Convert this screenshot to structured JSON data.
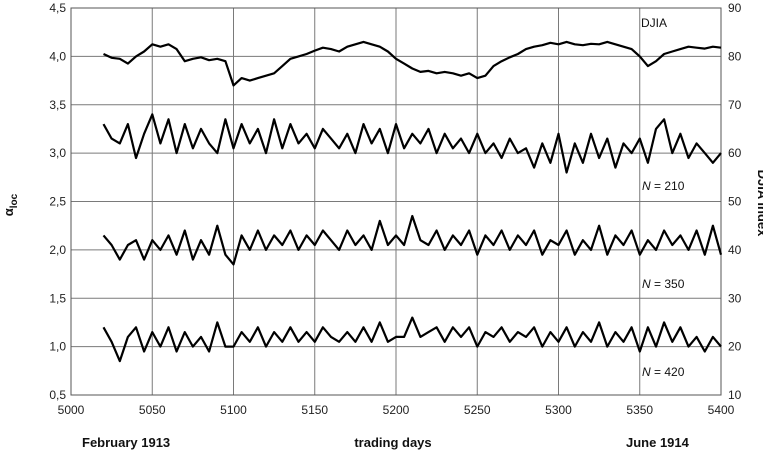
{
  "chart_data": {
    "type": "line",
    "left_axis": {
      "title_main": "α",
      "title_sub": "loc",
      "ylim": [
        0.5,
        4.5
      ],
      "tick_labels": [
        "0,5",
        "1,0",
        "1,5",
        "2,0",
        "2,5",
        "3,0",
        "3,5",
        "4,0",
        "4,5"
      ]
    },
    "right_axis": {
      "title": "DJIA Index",
      "ylim": [
        10,
        90
      ],
      "tick_labels": [
        "10",
        "20",
        "30",
        "40",
        "50",
        "60",
        "70",
        "80",
        "90"
      ]
    },
    "x_axis": {
      "title": "trading days",
      "xlim": [
        5000,
        5400
      ],
      "tick_labels": [
        "5000",
        "5050",
        "5100",
        "5150",
        "5200",
        "5250",
        "5300",
        "5350",
        "5400"
      ],
      "date_left": "February 1913",
      "date_right": "June 1914"
    },
    "grid": true,
    "series": [
      {
        "name": "DJIA",
        "axis": "right",
        "x": [
          5020,
          5025,
          5030,
          5035,
          5040,
          5045,
          5050,
          5055,
          5060,
          5065,
          5070,
          5075,
          5080,
          5085,
          5090,
          5095,
          5100,
          5105,
          5110,
          5115,
          5120,
          5125,
          5130,
          5135,
          5140,
          5145,
          5150,
          5155,
          5160,
          5165,
          5170,
          5175,
          5180,
          5185,
          5190,
          5195,
          5200,
          5205,
          5210,
          5215,
          5220,
          5225,
          5230,
          5235,
          5240,
          5245,
          5250,
          5255,
          5260,
          5265,
          5270,
          5275,
          5280,
          5285,
          5290,
          5295,
          5300,
          5305,
          5310,
          5315,
          5320,
          5325,
          5330,
          5335,
          5340,
          5345,
          5350,
          5355,
          5360,
          5365,
          5370,
          5375,
          5380,
          5385,
          5390,
          5395,
          5400
        ],
        "values": [
          80.5,
          79.7,
          79.5,
          78.5,
          80.0,
          81.0,
          82.5,
          82.0,
          82.5,
          81.5,
          79.0,
          79.5,
          79.8,
          79.2,
          79.5,
          79.0,
          74.0,
          75.5,
          75.0,
          75.5,
          76.0,
          76.5,
          78.0,
          79.5,
          80.0,
          80.5,
          81.2,
          81.8,
          81.5,
          81.0,
          82.0,
          82.5,
          83.0,
          82.5,
          82.0,
          81.0,
          79.5,
          78.5,
          77.5,
          76.8,
          77.0,
          76.5,
          76.8,
          76.5,
          76.0,
          76.5,
          75.5,
          76.0,
          78.0,
          79.0,
          79.8,
          80.5,
          81.5,
          82.0,
          82.3,
          82.8,
          82.5,
          83.0,
          82.5,
          82.3,
          82.6,
          82.5,
          83.0,
          82.5,
          82.0,
          81.5,
          80.0,
          78.0,
          79.0,
          80.5,
          81.0,
          81.5,
          82.0,
          81.8,
          81.6,
          82.0,
          81.8
        ]
      },
      {
        "name": "N = 210",
        "axis": "left",
        "x": [
          5020,
          5025,
          5030,
          5035,
          5040,
          5045,
          5050,
          5055,
          5060,
          5065,
          5070,
          5075,
          5080,
          5085,
          5090,
          5095,
          5100,
          5105,
          5110,
          5115,
          5120,
          5125,
          5130,
          5135,
          5140,
          5145,
          5150,
          5155,
          5160,
          5165,
          5170,
          5175,
          5180,
          5185,
          5190,
          5195,
          5200,
          5205,
          5210,
          5215,
          5220,
          5225,
          5230,
          5235,
          5240,
          5245,
          5250,
          5255,
          5260,
          5265,
          5270,
          5275,
          5280,
          5285,
          5290,
          5295,
          5300,
          5305,
          5310,
          5315,
          5320,
          5325,
          5330,
          5335,
          5340,
          5345,
          5350,
          5355,
          5360,
          5365,
          5370,
          5375,
          5380,
          5385,
          5390,
          5395,
          5400
        ],
        "values": [
          3.3,
          3.15,
          3.1,
          3.3,
          2.95,
          3.2,
          3.4,
          3.1,
          3.35,
          3.0,
          3.3,
          3.05,
          3.25,
          3.1,
          3.0,
          3.35,
          3.05,
          3.3,
          3.1,
          3.25,
          3.0,
          3.35,
          3.05,
          3.3,
          3.1,
          3.2,
          3.05,
          3.25,
          3.15,
          3.05,
          3.2,
          3.0,
          3.3,
          3.1,
          3.25,
          3.0,
          3.3,
          3.05,
          3.2,
          3.1,
          3.25,
          3.0,
          3.2,
          3.05,
          3.15,
          3.0,
          3.2,
          3.0,
          3.1,
          2.95,
          3.15,
          3.0,
          3.05,
          2.85,
          3.1,
          2.9,
          3.2,
          2.8,
          3.1,
          2.9,
          3.2,
          2.95,
          3.15,
          2.85,
          3.1,
          3.0,
          3.15,
          2.9,
          3.25,
          3.35,
          3.0,
          3.2,
          2.95,
          3.1,
          3.0,
          2.9,
          3.0
        ]
      },
      {
        "name": "N = 350",
        "axis": "left",
        "x": [
          5020,
          5025,
          5030,
          5035,
          5040,
          5045,
          5050,
          5055,
          5060,
          5065,
          5070,
          5075,
          5080,
          5085,
          5090,
          5095,
          5100,
          5105,
          5110,
          5115,
          5120,
          5125,
          5130,
          5135,
          5140,
          5145,
          5150,
          5155,
          5160,
          5165,
          5170,
          5175,
          5180,
          5185,
          5190,
          5195,
          5200,
          5205,
          5210,
          5215,
          5220,
          5225,
          5230,
          5235,
          5240,
          5245,
          5250,
          5255,
          5260,
          5265,
          5270,
          5275,
          5280,
          5285,
          5290,
          5295,
          5300,
          5305,
          5310,
          5315,
          5320,
          5325,
          5330,
          5335,
          5340,
          5345,
          5350,
          5355,
          5360,
          5365,
          5370,
          5375,
          5380,
          5385,
          5390,
          5395,
          5400
        ],
        "values": [
          2.15,
          2.05,
          1.9,
          2.05,
          2.1,
          1.9,
          2.1,
          2.0,
          2.15,
          1.95,
          2.2,
          1.9,
          2.1,
          1.95,
          2.25,
          1.95,
          1.85,
          2.15,
          2.0,
          2.2,
          2.0,
          2.15,
          2.05,
          2.2,
          2.0,
          2.15,
          2.05,
          2.2,
          2.1,
          2.0,
          2.2,
          2.05,
          2.15,
          2.0,
          2.3,
          2.05,
          2.15,
          2.05,
          2.35,
          2.1,
          2.05,
          2.2,
          2.0,
          2.15,
          2.05,
          2.2,
          1.95,
          2.15,
          2.05,
          2.2,
          2.0,
          2.15,
          2.05,
          2.2,
          1.95,
          2.1,
          2.05,
          2.2,
          1.95,
          2.1,
          2.0,
          2.25,
          1.95,
          2.15,
          2.05,
          2.2,
          1.95,
          2.1,
          2.0,
          2.2,
          2.05,
          2.15,
          2.0,
          2.2,
          1.95,
          2.25,
          1.95
        ]
      },
      {
        "name": "N = 420",
        "axis": "left",
        "x": [
          5020,
          5025,
          5030,
          5035,
          5040,
          5045,
          5050,
          5055,
          5060,
          5065,
          5070,
          5075,
          5080,
          5085,
          5090,
          5095,
          5100,
          5105,
          5110,
          5115,
          5120,
          5125,
          5130,
          5135,
          5140,
          5145,
          5150,
          5155,
          5160,
          5165,
          5170,
          5175,
          5180,
          5185,
          5190,
          5195,
          5200,
          5205,
          5210,
          5215,
          5220,
          5225,
          5230,
          5235,
          5240,
          5245,
          5250,
          5255,
          5260,
          5265,
          5270,
          5275,
          5280,
          5285,
          5290,
          5295,
          5300,
          5305,
          5310,
          5315,
          5320,
          5325,
          5330,
          5335,
          5340,
          5345,
          5350,
          5355,
          5360,
          5365,
          5370,
          5375,
          5380,
          5385,
          5390,
          5395,
          5400
        ],
        "values": [
          1.2,
          1.05,
          0.85,
          1.1,
          1.2,
          0.95,
          1.15,
          1.0,
          1.2,
          0.95,
          1.15,
          1.0,
          1.1,
          0.95,
          1.25,
          1.0,
          1.0,
          1.15,
          1.05,
          1.2,
          1.0,
          1.15,
          1.05,
          1.2,
          1.05,
          1.15,
          1.05,
          1.2,
          1.1,
          1.05,
          1.15,
          1.05,
          1.2,
          1.05,
          1.25,
          1.05,
          1.1,
          1.1,
          1.3,
          1.1,
          1.15,
          1.2,
          1.05,
          1.2,
          1.1,
          1.2,
          1.0,
          1.15,
          1.1,
          1.2,
          1.05,
          1.15,
          1.1,
          1.2,
          1.0,
          1.15,
          1.05,
          1.2,
          1.0,
          1.15,
          1.05,
          1.25,
          1.0,
          1.15,
          1.05,
          1.2,
          0.95,
          1.2,
          1.0,
          1.25,
          1.05,
          1.2,
          1.0,
          1.1,
          0.95,
          1.1,
          1.0
        ]
      }
    ]
  }
}
